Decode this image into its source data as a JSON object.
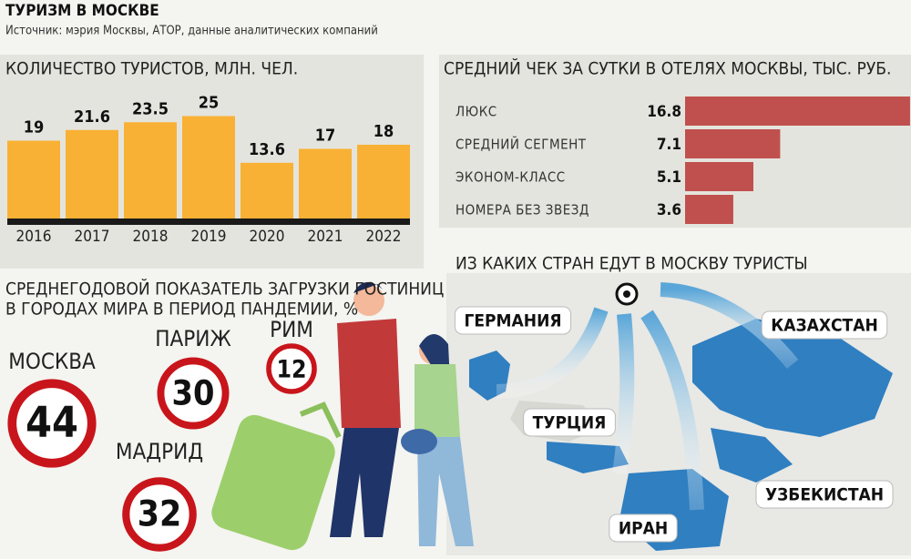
{
  "title": "ТУРИЗМ В МОСКВЕ",
  "source": "Источник: мэрия Москвы, АТОР, данные аналитических компаний",
  "chart_data": [
    {
      "type": "bar",
      "title": "КОЛИЧЕСТВО ТУРИСТОВ, МЛН. ЧЕЛ.",
      "categories": [
        "2016",
        "2017",
        "2018",
        "2019",
        "2020",
        "2021",
        "2022"
      ],
      "values": [
        19,
        21.6,
        23.5,
        25,
        13.6,
        17,
        18
      ],
      "color": "#f8b134"
    },
    {
      "type": "hbar",
      "title": "СРЕДНИЙ ЧЕК ЗА СУТКИ В ОТЕЛЯХ МОСКВЫ, ТЫС. РУБ.",
      "categories": [
        "ЛЮКС",
        "СРЕДНИЙ СЕГМЕНТ",
        "ЭКОНОМ-КЛАСС",
        "НОМЕРА БЕЗ ЗВЕЗД"
      ],
      "values": [
        16.8,
        7.1,
        5.1,
        3.6
      ],
      "color": "#c0504d"
    },
    {
      "type": "badge",
      "title": [
        "СРЕДНЕГОДОВОЙ ПОКАЗАТЕЛЬ ЗАГРУЗКИ ГОСТИНИЦ",
        "В ГОРОДАХ МИРА В ПЕРИОД ПАНДЕМИИ, %"
      ],
      "categories": [
        "МОСКВА",
        "ПАРИЖ",
        "РИМ",
        "МАДРИД"
      ],
      "values": [
        44,
        30,
        12,
        32
      ],
      "color": "#c8151b"
    }
  ],
  "map": {
    "title": "ИЗ КАКИХ СТРАН ЕДУТ В МОСКВУ ТУРИСТЫ",
    "countries": [
      "ГЕРМАНИЯ",
      "КАЗАХСТАН",
      "ТУРЦИЯ",
      "УЗБЕКИСТАН",
      "ИРАН"
    ]
  }
}
